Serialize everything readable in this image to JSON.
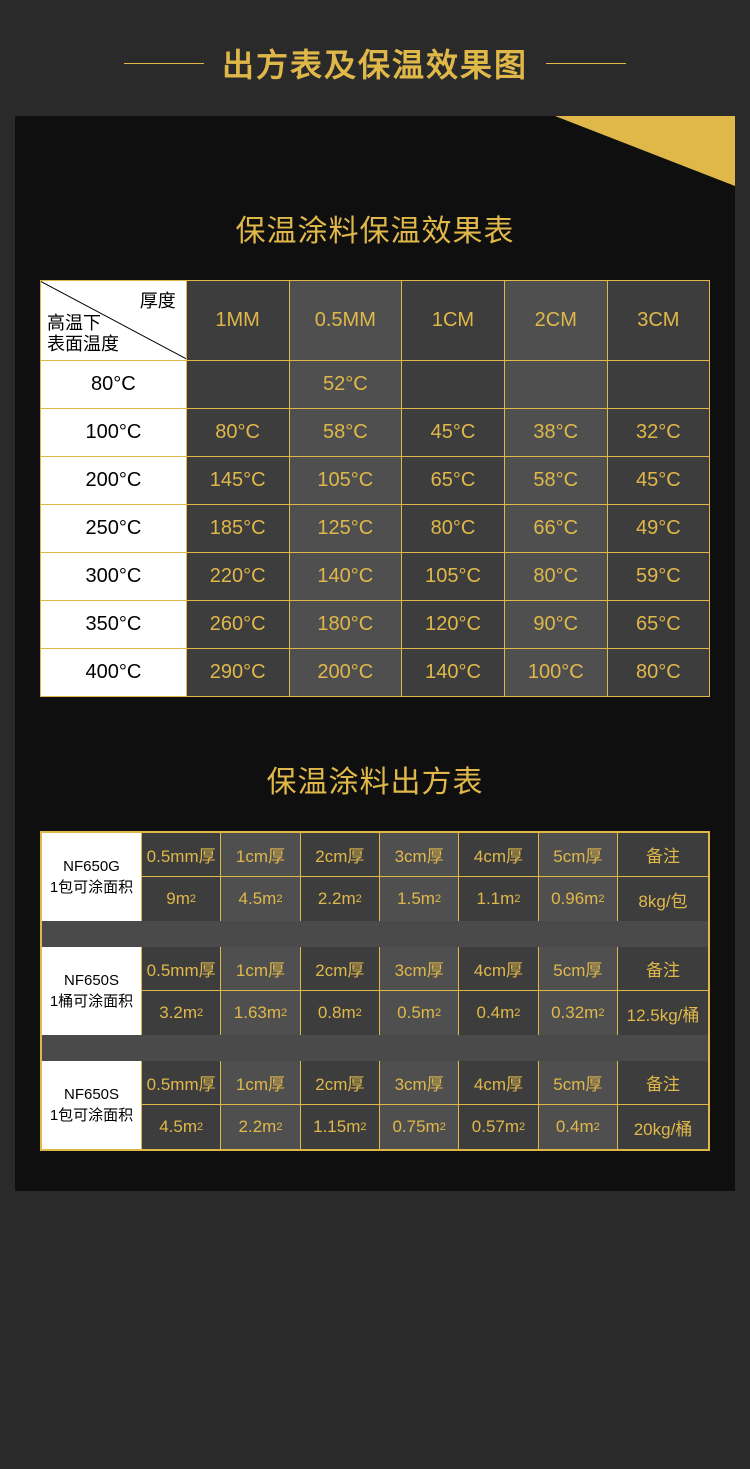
{
  "page_title": "出方表及保温效果图",
  "accent_color": "#e0b84a",
  "background_color": "#2a2a2a",
  "panel_color": "#0f0f0f",
  "section1": {
    "title": "保温涂料保温效果表",
    "corner_top": "厚度",
    "corner_bottom_l1": "高温下",
    "corner_bottom_l2": "表面温度",
    "columns": [
      "1MM",
      "0.5MM",
      "1CM",
      "2CM",
      "3CM"
    ],
    "rows": [
      {
        "label": "80°C",
        "cells": [
          "",
          "52°C",
          "",
          "",
          ""
        ]
      },
      {
        "label": "100°C",
        "cells": [
          "80°C",
          "58°C",
          "45°C",
          "38°C",
          "32°C"
        ]
      },
      {
        "label": "200°C",
        "cells": [
          "145°C",
          "105°C",
          "65°C",
          "58°C",
          "45°C"
        ]
      },
      {
        "label": "250°C",
        "cells": [
          "185°C",
          "125°C",
          "80°C",
          "66°C",
          "49°C"
        ]
      },
      {
        "label": "300°C",
        "cells": [
          "220°C",
          "140°C",
          "105°C",
          "80°C",
          "59°C"
        ]
      },
      {
        "label": "350°C",
        "cells": [
          "260°C",
          "180°C",
          "120°C",
          "90°C",
          "65°C"
        ]
      },
      {
        "label": "400°C",
        "cells": [
          "290°C",
          "200°C",
          "140°C",
          "100°C",
          "80°C"
        ]
      }
    ]
  },
  "section2": {
    "title": "保温涂料出方表",
    "thickness_headers": [
      "0.5mm厚",
      "1cm厚",
      "2cm厚",
      "3cm厚",
      "4cm厚",
      "5cm厚",
      "备注"
    ],
    "blocks": [
      {
        "product_l1": "NF650G",
        "product_l2": "1包可涂面积",
        "values": [
          "9m²",
          "4.5m²",
          "2.2m²",
          "1.5m²",
          "1.1m²",
          "0.96m²",
          "8kg/包"
        ]
      },
      {
        "product_l1": "NF650S",
        "product_l2": "1桶可涂面积",
        "values": [
          "3.2m²",
          "1.63m²",
          "0.8m²",
          "0.5m²",
          "0.4m²",
          "0.32m²",
          "12.5kg/桶"
        ]
      },
      {
        "product_l1": "NF650S",
        "product_l2": "1包可涂面积",
        "values": [
          "4.5m²",
          "2.2m²",
          "1.15m²",
          "0.75m²",
          "0.57m²",
          "0.4m²",
          "20kg/桶"
        ]
      }
    ]
  }
}
